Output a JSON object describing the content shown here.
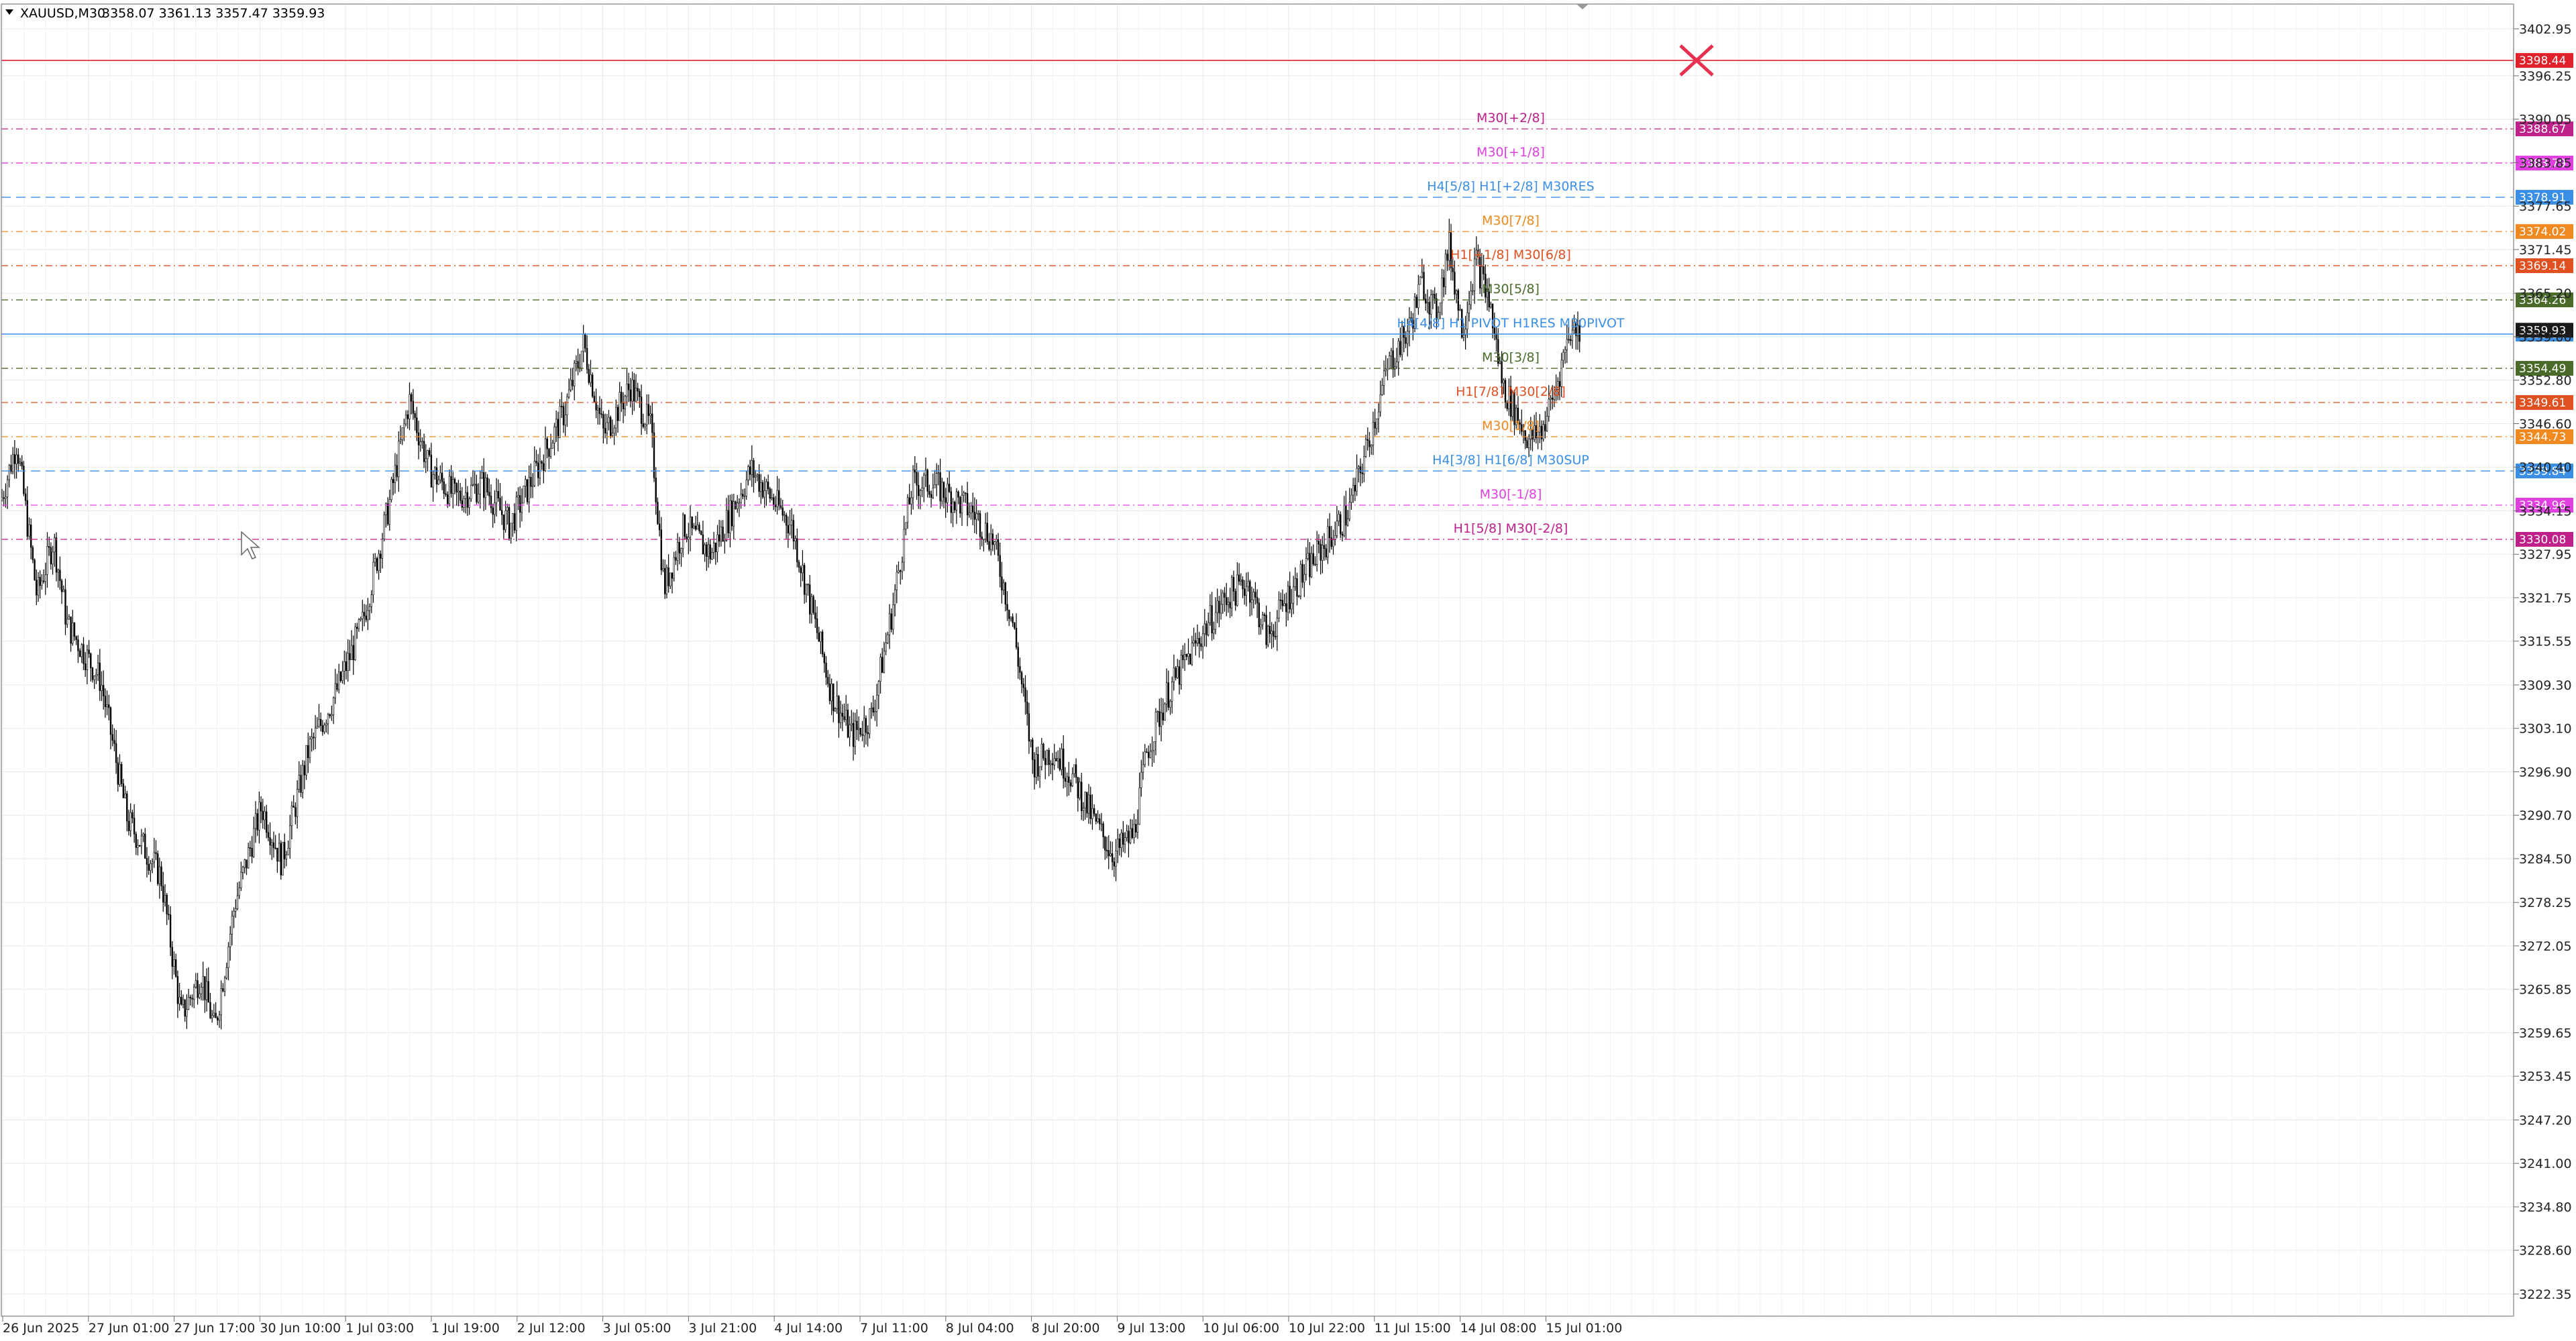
{
  "header": {
    "symbol": "XAUUSD,M30",
    "ohlc": "3358.07 3361.13 3357.47 3359.93"
  },
  "price_axis": {
    "ticks": [
      "3402.95",
      "3396.25",
      "3390.05",
      "3383.85",
      "3377.65",
      "3371.45",
      "3365.20",
      "3359.00",
      "3352.80",
      "3346.60",
      "3340.40",
      "3334.15",
      "3327.95",
      "3321.75",
      "3315.55",
      "3309.30",
      "3303.10",
      "3296.90",
      "3290.70",
      "3284.50",
      "3278.25",
      "3272.05",
      "3265.85",
      "3259.65",
      "3253.45",
      "3247.20",
      "3241.00",
      "3234.80",
      "3228.60",
      "3222.35"
    ]
  },
  "time_axis": {
    "labels": [
      "26 Jun 2025",
      "27 Jun 01:00",
      "27 Jun 17:00",
      "30 Jun 10:00",
      "1 Jul 03:00",
      "1 Jul 19:00",
      "2 Jul 12:00",
      "3 Jul 05:00",
      "3 Jul 21:00",
      "4 Jul 14:00",
      "7 Jul 11:00",
      "8 Jul 04:00",
      "8 Jul 20:00",
      "9 Jul 13:00",
      "10 Jul 06:00",
      "10 Jul 22:00",
      "11 Jul 15:00",
      "14 Jul 08:00",
      "15 Jul 01:00"
    ]
  },
  "levels": [
    {
      "price": "3398.44",
      "label": "",
      "color": "#e0202a",
      "style": "solid"
    },
    {
      "price": "3388.67",
      "label": "M30[+2/8]",
      "color": "#c0208a",
      "style": "dashdot"
    },
    {
      "price": "3383.79",
      "label": "M30[+1/8]",
      "color": "#e040e0",
      "style": "dashdot"
    },
    {
      "price": "3378.91",
      "label": "H4[5/8] H1[+2/8] M30RES",
      "color": "#3a8ee6",
      "style": "dash"
    },
    {
      "price": "3374.02",
      "label": "M30[7/8]",
      "color": "#f08a20",
      "style": "dashdot"
    },
    {
      "price": "3369.14",
      "label": "H1[+1/8] M30[6/8]",
      "color": "#e05020",
      "style": "dashdot"
    },
    {
      "price": "3364.26",
      "label": "M30[5/8]",
      "color": "#4a6a2a",
      "style": "dashdot"
    },
    {
      "price": "3359.38",
      "label": "H4[4/8] H1 PIVOT H1RES M30PIVOT",
      "color": "#3a8ee6",
      "style": "solid"
    },
    {
      "price": "3354.49",
      "label": "M30[3/8]",
      "color": "#4a6a2a",
      "style": "dashdot"
    },
    {
      "price": "3349.61",
      "label": "H1[7/8] M30[2/8]",
      "color": "#e05020",
      "style": "dashdot"
    },
    {
      "price": "3344.73",
      "label": "M30[1/8]",
      "color": "#f08a20",
      "style": "dashdot"
    },
    {
      "price": "3339.84",
      "label": "H4[3/8] H1[6/8] M30SUP",
      "color": "#3a8ee6",
      "style": "dash"
    },
    {
      "price": "3334.96",
      "label": "M30[-1/8]",
      "color": "#e040e0",
      "style": "dashdot"
    },
    {
      "price": "3330.08",
      "label": "H1[5/8] M30[-2/8]",
      "color": "#c0208a",
      "style": "dashdot"
    }
  ],
  "current_price": "3359.93",
  "colors": {
    "candle": "#000000",
    "grid": "#e8e8ee",
    "axis_line": "#888888"
  }
}
